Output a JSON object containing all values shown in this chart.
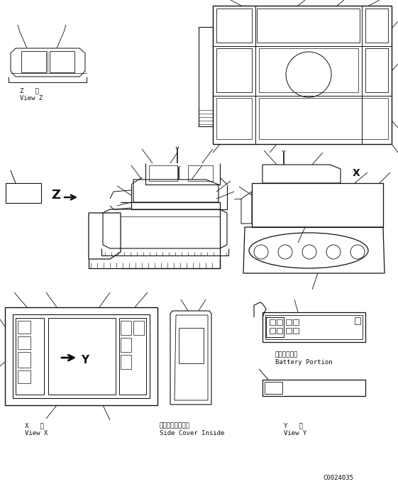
{
  "bg_color": "#ffffff",
  "lc": "#111111",
  "fig_width": 5.61,
  "fig_height": 6.82,
  "dpi": 100,
  "labels": {
    "view_z_jp": "Z   視",
    "view_z_en": "View Z",
    "view_x_jp": "X   視",
    "view_x_en": "View X",
    "side_cover_jp": "サイドカバー内側",
    "side_cover_en": "Side Cover Inside",
    "view_y_jp": "Y   視",
    "view_y_en": "View Y",
    "battery_jp": "バッテリー部",
    "battery_en": "Battery Portion",
    "part_num": "C0024035"
  }
}
